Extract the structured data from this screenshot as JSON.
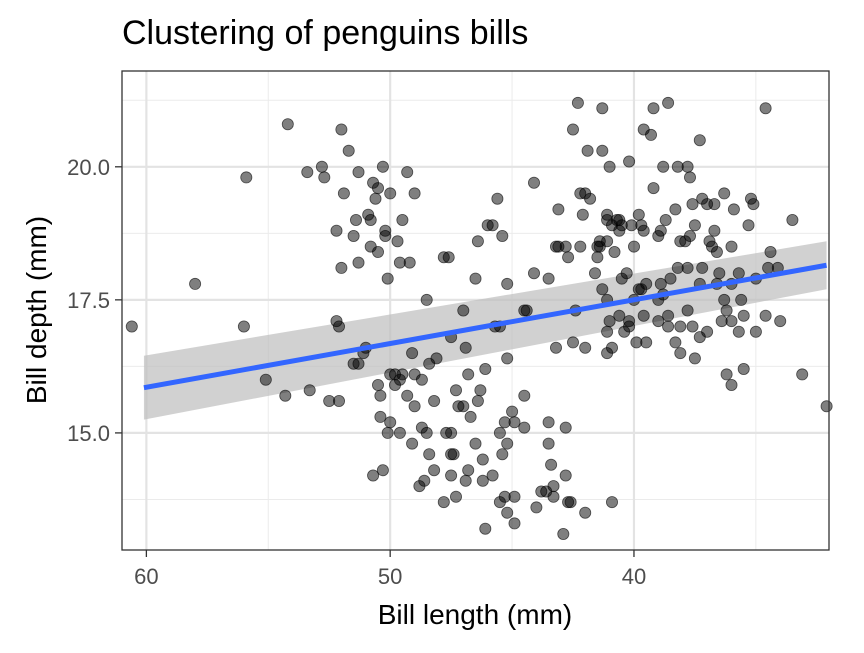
{
  "chart_data": {
    "type": "scatter",
    "title": "Clustering of penguins bills",
    "xlabel": "Bill length (mm)",
    "ylabel": "Bill depth (mm)",
    "x_reversed": true,
    "xlim": [
      61,
      32
    ],
    "ylim": [
      12.8,
      21.8
    ],
    "x_ticks": [
      60,
      50,
      40
    ],
    "x_tick_labels": [
      "60",
      "50",
      "40"
    ],
    "y_ticks": [
      15,
      17.5,
      20
    ],
    "y_tick_labels": [
      "15.0",
      "17.5",
      "20.0"
    ],
    "grid": true,
    "point_color": "#000000",
    "point_opacity": 0.5,
    "trend": {
      "method": "linear",
      "color": "#3366ff",
      "band_color": "#bdbdbd",
      "x": [
        60.1,
        32.1
      ],
      "y": [
        15.85,
        18.15
      ],
      "band_lower": [
        15.25,
        17.7
      ],
      "band_upper": [
        16.45,
        18.6
      ]
    },
    "points": [
      [
        60.6,
        17.0
      ],
      [
        58.0,
        17.8
      ],
      [
        55.9,
        19.8
      ],
      [
        56.0,
        17.0
      ],
      [
        55.1,
        16.0
      ],
      [
        54.3,
        15.7
      ],
      [
        54.2,
        20.8
      ],
      [
        53.4,
        19.9
      ],
      [
        52.8,
        20.0
      ],
      [
        52.7,
        19.8
      ],
      [
        53.3,
        15.8
      ],
      [
        52.5,
        15.6
      ],
      [
        52.2,
        18.8
      ],
      [
        52.2,
        17.1
      ],
      [
        52.0,
        20.7
      ],
      [
        52.0,
        18.1
      ],
      [
        51.9,
        19.5
      ],
      [
        52.1,
        17.0
      ],
      [
        51.7,
        20.3
      ],
      [
        51.5,
        18.7
      ],
      [
        51.4,
        19.0
      ],
      [
        51.5,
        16.3
      ],
      [
        51.3,
        19.9
      ],
      [
        51.3,
        18.2
      ],
      [
        51.1,
        16.5
      ],
      [
        51.3,
        16.3
      ],
      [
        50.9,
        19.1
      ],
      [
        50.8,
        19.0
      ],
      [
        50.8,
        18.5
      ],
      [
        50.7,
        19.7
      ],
      [
        50.5,
        19.6
      ],
      [
        50.6,
        19.4
      ],
      [
        50.5,
        18.4
      ],
      [
        50.4,
        15.3
      ],
      [
        50.3,
        20.0
      ],
      [
        50.2,
        18.8
      ],
      [
        50.2,
        18.7
      ],
      [
        50.5,
        15.9
      ],
      [
        50.4,
        15.7
      ],
      [
        50.1,
        17.9
      ],
      [
        50.0,
        19.5
      ],
      [
        50.0,
        15.2
      ],
      [
        50.0,
        16.1
      ],
      [
        50.1,
        15.0
      ],
      [
        49.7,
        18.6
      ],
      [
        49.6,
        18.2
      ],
      [
        49.5,
        19.0
      ],
      [
        49.6,
        16.0
      ],
      [
        49.8,
        15.9
      ],
      [
        49.8,
        16.1
      ],
      [
        49.5,
        16.1
      ],
      [
        49.6,
        15.0
      ],
      [
        49.3,
        19.9
      ],
      [
        49.3,
        15.7
      ],
      [
        49.2,
        18.2
      ],
      [
        49.1,
        14.8
      ],
      [
        49.0,
        19.5
      ],
      [
        49.0,
        16.1
      ],
      [
        48.7,
        15.1
      ],
      [
        48.7,
        16.0
      ],
      [
        48.5,
        17.5
      ],
      [
        48.4,
        16.3
      ],
      [
        48.5,
        15.0
      ],
      [
        48.6,
        14.1
      ],
      [
        48.4,
        14.6
      ],
      [
        48.2,
        15.6
      ],
      [
        48.1,
        16.4
      ],
      [
        48.2,
        14.3
      ],
      [
        47.8,
        18.3
      ],
      [
        47.6,
        18.3
      ],
      [
        47.5,
        16.8
      ],
      [
        47.7,
        15.0
      ],
      [
        47.5,
        15.0
      ],
      [
        47.5,
        14.2
      ],
      [
        47.4,
        14.6
      ],
      [
        47.3,
        13.8
      ],
      [
        47.2,
        15.5
      ],
      [
        47.0,
        17.3
      ],
      [
        47.0,
        15.5
      ],
      [
        46.9,
        16.6
      ],
      [
        46.8,
        16.1
      ],
      [
        46.7,
        15.3
      ],
      [
        46.8,
        14.3
      ],
      [
        46.5,
        17.9
      ],
      [
        46.4,
        18.6
      ],
      [
        46.5,
        14.8
      ],
      [
        46.2,
        14.5
      ],
      [
        46.4,
        15.6
      ],
      [
        46.1,
        13.2
      ],
      [
        46.2,
        14.1
      ],
      [
        46.3,
        15.8
      ],
      [
        46.0,
        18.9
      ],
      [
        45.8,
        18.9
      ],
      [
        45.7,
        17.0
      ],
      [
        45.6,
        19.4
      ],
      [
        45.5,
        17.0
      ],
      [
        45.5,
        15.0
      ],
      [
        45.8,
        14.2
      ],
      [
        45.4,
        18.7
      ],
      [
        45.5,
        13.7
      ],
      [
        45.4,
        14.6
      ],
      [
        45.2,
        17.8
      ],
      [
        45.2,
        16.4
      ],
      [
        45.3,
        13.8
      ],
      [
        45.2,
        14.8
      ],
      [
        45.0,
        15.4
      ],
      [
        44.9,
        13.8
      ],
      [
        44.9,
        13.3
      ],
      [
        44.5,
        17.3
      ],
      [
        44.5,
        15.7
      ],
      [
        44.4,
        17.3
      ],
      [
        44.1,
        18.0
      ],
      [
        44.1,
        19.7
      ],
      [
        44.0,
        13.6
      ],
      [
        43.8,
        13.9
      ],
      [
        43.6,
        13.9
      ],
      [
        43.5,
        17.9
      ],
      [
        43.5,
        15.2
      ],
      [
        43.4,
        14.4
      ],
      [
        43.3,
        14.0
      ],
      [
        43.2,
        18.5
      ],
      [
        43.2,
        16.6
      ],
      [
        43.1,
        19.2
      ],
      [
        43.1,
        18.5
      ],
      [
        42.8,
        18.5
      ],
      [
        42.9,
        13.1
      ],
      [
        42.8,
        14.2
      ],
      [
        42.7,
        18.3
      ],
      [
        42.7,
        13.7
      ],
      [
        42.6,
        13.7
      ],
      [
        42.5,
        20.7
      ],
      [
        42.5,
        16.7
      ],
      [
        42.4,
        17.3
      ],
      [
        42.3,
        21.2
      ],
      [
        42.2,
        19.5
      ],
      [
        42.2,
        18.5
      ],
      [
        42.1,
        19.1
      ],
      [
        42.0,
        19.5
      ],
      [
        42.0,
        13.5
      ],
      [
        41.9,
        20.3
      ],
      [
        41.8,
        19.4
      ],
      [
        41.6,
        18.0
      ],
      [
        41.5,
        18.5
      ],
      [
        41.5,
        18.3
      ],
      [
        41.4,
        18.6
      ],
      [
        41.4,
        18.5
      ],
      [
        41.3,
        21.1
      ],
      [
        41.3,
        20.3
      ],
      [
        41.3,
        17.7
      ],
      [
        41.1,
        19.1
      ],
      [
        41.1,
        19.0
      ],
      [
        41.1,
        18.6
      ],
      [
        41.1,
        17.5
      ],
      [
        41.0,
        20.0
      ],
      [
        41.0,
        17.1
      ],
      [
        40.9,
        18.9
      ],
      [
        40.9,
        16.6
      ],
      [
        40.8,
        18.4
      ],
      [
        40.7,
        19.0
      ],
      [
        40.6,
        19.0
      ],
      [
        40.6,
        18.8
      ],
      [
        40.6,
        17.2
      ],
      [
        40.5,
        18.9
      ],
      [
        40.5,
        17.9
      ],
      [
        40.3,
        18.0
      ],
      [
        40.2,
        20.1
      ],
      [
        40.2,
        17.1
      ],
      [
        40.2,
        17.0
      ],
      [
        40.1,
        18.9
      ],
      [
        40.0,
        18.5
      ],
      [
        40.0,
        17.5
      ],
      [
        39.8,
        19.1
      ],
      [
        39.8,
        17.7
      ],
      [
        39.7,
        18.9
      ],
      [
        39.7,
        17.7
      ],
      [
        39.6,
        20.7
      ],
      [
        39.6,
        18.8
      ],
      [
        39.6,
        17.2
      ],
      [
        39.5,
        16.7
      ],
      [
        39.5,
        17.8
      ],
      [
        39.3,
        20.6
      ],
      [
        39.2,
        21.1
      ],
      [
        39.2,
        19.6
      ],
      [
        39.0,
        18.7
      ],
      [
        39.0,
        17.5
      ],
      [
        38.9,
        18.8
      ],
      [
        38.9,
        17.8
      ],
      [
        38.8,
        20.0
      ],
      [
        38.8,
        17.6
      ],
      [
        38.7,
        19.0
      ],
      [
        38.6,
        21.2
      ],
      [
        38.6,
        17.2
      ],
      [
        38.6,
        17.0
      ],
      [
        38.5,
        17.9
      ],
      [
        38.3,
        19.2
      ],
      [
        38.2,
        20.0
      ],
      [
        38.2,
        18.1
      ],
      [
        38.1,
        18.6
      ],
      [
        38.1,
        17.0
      ],
      [
        38.1,
        16.5
      ],
      [
        37.9,
        18.6
      ],
      [
        37.8,
        20.0
      ],
      [
        37.8,
        18.1
      ],
      [
        37.8,
        17.3
      ],
      [
        37.7,
        19.8
      ],
      [
        37.7,
        18.7
      ],
      [
        37.6,
        19.3
      ],
      [
        37.6,
        17.0
      ],
      [
        37.5,
        18.9
      ],
      [
        37.3,
        20.5
      ],
      [
        37.3,
        17.8
      ],
      [
        37.3,
        16.8
      ],
      [
        37.2,
        19.4
      ],
      [
        37.2,
        18.1
      ],
      [
        37.0,
        19.3
      ],
      [
        37.0,
        16.9
      ],
      [
        36.9,
        18.6
      ],
      [
        36.8,
        18.5
      ],
      [
        36.7,
        19.3
      ],
      [
        36.7,
        18.8
      ],
      [
        36.6,
        17.8
      ],
      [
        36.6,
        18.4
      ],
      [
        36.5,
        18.0
      ],
      [
        36.4,
        17.1
      ],
      [
        36.3,
        19.5
      ],
      [
        36.3,
        17.5
      ],
      [
        36.2,
        17.3
      ],
      [
        36.2,
        16.1
      ],
      [
        36.0,
        18.5
      ],
      [
        36.0,
        17.8
      ],
      [
        36.0,
        17.1
      ],
      [
        35.9,
        19.2
      ],
      [
        35.7,
        18.0
      ],
      [
        35.7,
        16.9
      ],
      [
        35.6,
        17.5
      ],
      [
        35.5,
        17.2
      ],
      [
        35.3,
        18.9
      ],
      [
        35.2,
        19.4
      ],
      [
        35.1,
        19.3
      ],
      [
        35.0,
        17.9
      ],
      [
        35.0,
        16.9
      ],
      [
        34.6,
        21.1
      ],
      [
        34.6,
        17.2
      ],
      [
        34.5,
        18.1
      ],
      [
        34.4,
        18.4
      ],
      [
        34.1,
        18.1
      ],
      [
        34.0,
        17.1
      ],
      [
        33.5,
        19.0
      ],
      [
        33.1,
        16.1
      ],
      [
        32.1,
        15.5
      ],
      [
        39.9,
        16.7
      ],
      [
        40.4,
        16.9
      ],
      [
        40.9,
        13.7
      ],
      [
        41.1,
        16.9
      ],
      [
        42.0,
        16.6
      ],
      [
        43.5,
        14.8
      ],
      [
        44.9,
        15.2
      ],
      [
        47.3,
        15.8
      ],
      [
        47.8,
        13.7
      ],
      [
        48.8,
        14.0
      ],
      [
        49.0,
        15.5
      ],
      [
        50.7,
        14.2
      ],
      [
        51.0,
        16.6
      ],
      [
        49.1,
        16.5
      ],
      [
        50.3,
        14.3
      ],
      [
        47.5,
        14.6
      ],
      [
        46.9,
        14.1
      ],
      [
        45.3,
        15.2
      ],
      [
        45.2,
        13.5
      ],
      [
        43.3,
        13.8
      ],
      [
        42.8,
        15.1
      ],
      [
        41.1,
        16.5
      ],
      [
        37.5,
        16.4
      ],
      [
        39.0,
        17.1
      ],
      [
        36.0,
        15.9
      ],
      [
        35.5,
        16.2
      ],
      [
        38.3,
        16.7
      ],
      [
        44.5,
        15.1
      ],
      [
        46.1,
        16.2
      ],
      [
        52.1,
        15.6
      ]
    ]
  }
}
